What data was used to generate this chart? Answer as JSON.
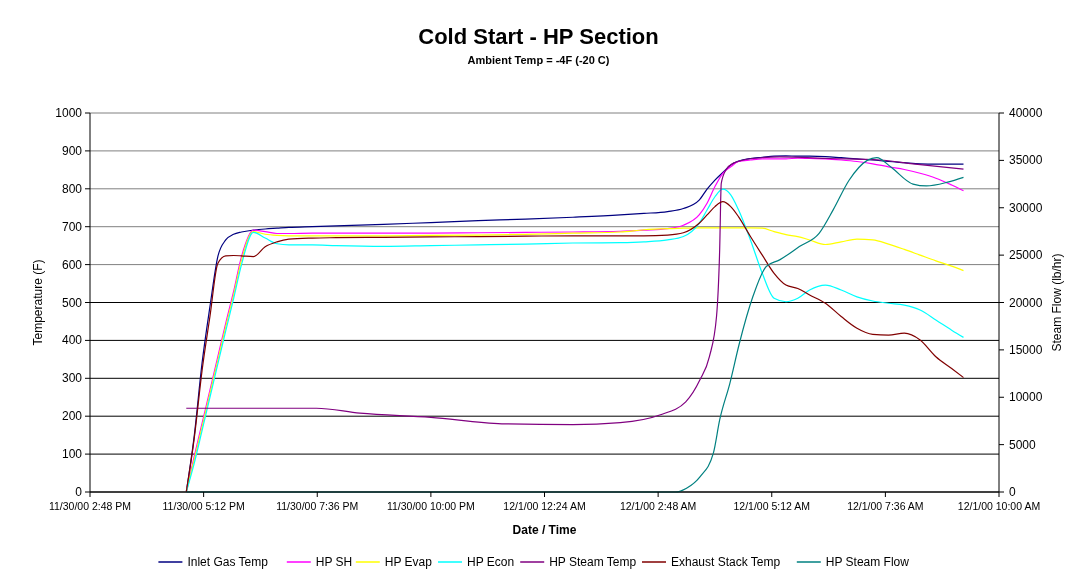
{
  "chart_data": {
    "type": "line",
    "title": "Cold Start - HP Section",
    "subtitle": "Ambient Temp = -4F (-20 C)",
    "xlabel": "Date / Time",
    "ylabel": "Temperature (F)",
    "y2label": "Steam Flow (lb/hr)",
    "xlim": [
      "2000-11-30T14:48",
      "2000-12-01T10:00"
    ],
    "xticks": [
      {
        "value": "2000-11-30T14:48",
        "label": "11/30/00 2:48 PM"
      },
      {
        "value": "2000-11-30T17:12",
        "label": "11/30/00 5:12 PM"
      },
      {
        "value": "2000-11-30T19:36",
        "label": "11/30/00 7:36 PM"
      },
      {
        "value": "2000-11-30T22:00",
        "label": "11/30/00 10:00 PM"
      },
      {
        "value": "2000-12-01T00:24",
        "label": "12/1/00 12:24 AM"
      },
      {
        "value": "2000-12-01T02:48",
        "label": "12/1/00 2:48 AM"
      },
      {
        "value": "2000-12-01T05:12",
        "label": "12/1/00 5:12 AM"
      },
      {
        "value": "2000-12-01T07:36",
        "label": "12/1/00 7:36 AM"
      },
      {
        "value": "2000-12-01T10:00",
        "label": "12/1/00 10:00 AM"
      }
    ],
    "ylim": [
      0,
      1000
    ],
    "yticks": [
      0,
      100,
      200,
      300,
      400,
      500,
      600,
      700,
      800,
      900,
      1000
    ],
    "y2lim": [
      0,
      40000
    ],
    "y2ticks": [
      0,
      5000,
      10000,
      15000,
      20000,
      25000,
      30000,
      35000,
      40000
    ],
    "grid": "y",
    "legend": "bottom",
    "marker": "none",
    "line_style": "solid",
    "x": [
      "2000-11-30T16:50",
      "2000-11-30T17:00",
      "2000-11-30T17:10",
      "2000-11-30T17:20",
      "2000-11-30T17:30",
      "2000-11-30T17:40",
      "2000-11-30T17:50",
      "2000-11-30T18:00",
      "2000-11-30T18:15",
      "2000-11-30T18:30",
      "2000-11-30T18:45",
      "2000-11-30T19:00",
      "2000-11-30T19:30",
      "2000-11-30T20:00",
      "2000-11-30T21:00",
      "2000-11-30T22:00",
      "2000-11-30T23:00",
      "2000-12-01T00:00",
      "2000-12-01T01:00",
      "2000-12-01T02:00",
      "2000-12-01T02:30",
      "2000-12-01T03:00",
      "2000-12-01T03:20",
      "2000-12-01T03:40",
      "2000-12-01T03:50",
      "2000-12-01T04:00",
      "2000-12-01T04:10",
      "2000-12-01T04:20",
      "2000-12-01T04:30",
      "2000-12-01T04:45",
      "2000-12-01T05:00",
      "2000-12-01T05:15",
      "2000-12-01T05:30",
      "2000-12-01T05:45",
      "2000-12-01T06:00",
      "2000-12-01T06:20",
      "2000-12-01T06:40",
      "2000-12-01T07:00",
      "2000-12-01T07:20",
      "2000-12-01T07:40",
      "2000-12-01T08:00",
      "2000-12-01T08:20",
      "2000-12-01T08:40",
      "2000-12-01T09:00",
      "2000-12-01T09:15"
    ],
    "series": [
      {
        "name": "Inlet Gas Temp",
        "color": "#000080",
        "values": [
          0,
          146,
          340,
          489,
          621,
          665,
          680,
          686,
          691,
          694,
          696,
          698,
          700,
          702,
          706,
          711,
          716,
          720,
          725,
          731,
          735,
          740,
          748,
          770,
          799,
          823,
          843,
          863,
          873,
          880,
          883,
          886,
          887,
          886,
          886,
          885,
          882,
          879,
          876,
          872,
          869,
          866,
          865,
          865,
          865
        ]
      },
      {
        "name": "HP SH",
        "color": "#ff00ff",
        "values": [
          0,
          93,
          181,
          269,
          357,
          445,
          529,
          621,
          691,
          687,
          682,
          682,
          683,
          683,
          683,
          683,
          684,
          685,
          686,
          688,
          691,
          695,
          704,
          731,
          762,
          806,
          841,
          858,
          872,
          876,
          879,
          879,
          879,
          881,
          880,
          879,
          876,
          872,
          866,
          858,
          851,
          841,
          828,
          810,
          795
        ]
      },
      {
        "name": "HP Evap",
        "color": "#ffff00",
        "values": [
          0,
          85,
          172,
          260,
          348,
          436,
          520,
          612,
          687,
          680,
          677,
          676,
          676,
          676,
          676,
          677,
          678,
          680,
          683,
          686,
          692,
          695,
          696,
          697,
          697,
          697,
          697,
          697,
          697,
          697,
          696,
          687,
          679,
          674,
          665,
          653,
          660,
          667,
          665,
          654,
          640,
          625,
          610,
          596,
          584
        ]
      },
      {
        "name": "HP Econ",
        "color": "#00ffff",
        "values": [
          0,
          75,
          162,
          250,
          338,
          425,
          510,
          600,
          685,
          670,
          655,
          652,
          652,
          650,
          648,
          650,
          652,
          654,
          657,
          658,
          660,
          665,
          674,
          709,
          744,
          779,
          799,
          784,
          744,
          665,
          577,
          511,
          502,
          511,
          533,
          546,
          533,
          515,
          504,
          498,
          493,
          480,
          454,
          427,
          408
        ]
      },
      {
        "name": "HP Steam Temp",
        "color": "#800080",
        "x": [
          "2000-11-30T16:50",
          "2000-11-30T19:35",
          "2000-11-30T20:30",
          "2000-11-30T22:00",
          "2000-11-30T23:30",
          "2000-12-01T01:00",
          "2000-12-01T02:00",
          "2000-12-01T02:50",
          "2000-12-01T03:23",
          "2000-12-01T03:41",
          "2000-12-01T03:53",
          "2000-12-01T04:02",
          "2000-12-01T04:06",
          "2000-12-01T04:08",
          "2000-12-01T04:14",
          "2000-12-01T04:23",
          "2000-12-01T04:48",
          "2000-12-01T05:22",
          "2000-12-01T06:25",
          "2000-12-01T07:29",
          "2000-12-01T08:11",
          "2000-12-01T09:15"
        ],
        "values": [
          221,
          221,
          208,
          197,
          180,
          178,
          183,
          203,
          238,
          296,
          357,
          463,
          639,
          814,
          850,
          867,
          880,
          884,
          880,
          876,
          866,
          852
        ]
      },
      {
        "name": "Exhaust Stack Temp",
        "color": "#800000",
        "values": [
          0,
          140,
          320,
          463,
          603,
          623,
          624,
          623,
          621,
          647,
          660,
          667,
          670,
          671,
          672,
          673,
          674,
          675,
          676,
          676,
          676,
          678,
          684,
          709,
          731,
          753,
          766,
          753,
          726,
          674,
          625,
          577,
          546,
          537,
          520,
          498,
          463,
          432,
          416,
          414,
          419,
          401,
          357,
          326,
          302
        ]
      },
      {
        "name": "HP Steam Flow",
        "color": "#008080",
        "axis": "y2",
        "x": [
          "2000-11-30T16:50",
          "2000-12-01T03:10",
          "2000-12-01T03:24",
          "2000-12-01T03:41",
          "2000-12-01T03:58",
          "2000-12-01T04:06",
          "2000-12-01T04:19",
          "2000-12-01T04:31",
          "2000-12-01T04:48",
          "2000-12-01T05:05",
          "2000-12-01T05:22",
          "2000-12-01T05:47",
          "2000-12-01T06:12",
          "2000-12-01T06:30",
          "2000-12-01T06:50",
          "2000-12-01T07:13",
          "2000-12-01T07:25",
          "2000-12-01T07:43",
          "2000-12-01T08:11",
          "2000-12-01T08:28",
          "2000-12-01T08:55",
          "2000-12-01T09:15"
        ],
        "values": [
          0,
          0,
          400,
          1600,
          4100,
          7600,
          11500,
          15700,
          20600,
          23800,
          24500,
          25900,
          27300,
          29800,
          32900,
          35000,
          35300,
          34300,
          32500,
          32300,
          32700,
          33200
        ]
      }
    ]
  }
}
